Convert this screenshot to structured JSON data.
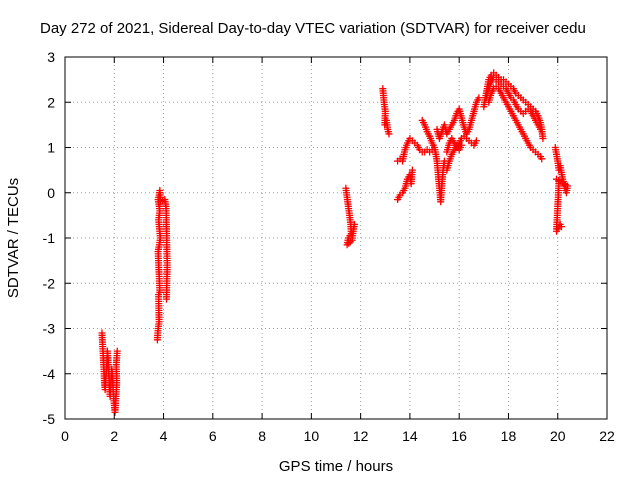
{
  "chart_data": {
    "type": "scatter",
    "title": "Day 272 of 2021, Sidereal Day-to-day VTEC variation (SDTVAR) for receiver cedu",
    "xlabel": "GPS time / hours",
    "ylabel": "SDTVAR / TECUs",
    "xlim": [
      0,
      22
    ],
    "ylim": [
      -5,
      3
    ],
    "xticks": [
      "0",
      "2",
      "4",
      "6",
      "8",
      "10",
      "12",
      "14",
      "16",
      "18",
      "20",
      "22"
    ],
    "yticks": [
      "-5",
      "-4",
      "-3",
      "-2",
      "-1",
      "0",
      "1",
      "2",
      "3"
    ],
    "grid": true,
    "marker": "plus",
    "series": [
      {
        "name": "SDTVAR",
        "color": "#ff0000",
        "segments": [
          [
            [
              1.5,
              -3.1
            ],
            [
              1.52,
              -3.3
            ],
            [
              1.55,
              -3.6
            ],
            [
              1.58,
              -3.9
            ],
            [
              1.6,
              -4.2
            ],
            [
              1.63,
              -4.35
            ],
            [
              1.66,
              -4.05
            ],
            [
              1.7,
              -3.8
            ],
            [
              1.72,
              -3.5
            ],
            [
              1.75,
              -3.7
            ],
            [
              1.78,
              -4.0
            ],
            [
              1.8,
              -4.3
            ],
            [
              1.83,
              -4.5
            ],
            [
              1.86,
              -4.2
            ],
            [
              1.9,
              -3.9
            ],
            [
              1.93,
              -4.1
            ],
            [
              1.96,
              -4.4
            ],
            [
              2.0,
              -4.7
            ],
            [
              2.03,
              -4.85
            ],
            [
              2.06,
              -4.6
            ],
            [
              2.1,
              -4.2
            ],
            [
              2.08,
              -3.8
            ],
            [
              2.12,
              -3.5
            ]
          ],
          [
            [
              3.75,
              -3.25
            ],
            [
              3.78,
              -3.0
            ],
            [
              3.82,
              -2.85
            ],
            [
              3.8,
              -2.25
            ],
            [
              3.85,
              -2.2
            ],
            [
              3.78,
              -1.3
            ],
            [
              3.83,
              -1.15
            ],
            [
              3.87,
              -1.0
            ],
            [
              3.8,
              -0.6
            ],
            [
              3.85,
              -0.4
            ],
            [
              3.78,
              -0.15
            ],
            [
              3.82,
              -0.05
            ],
            [
              3.85,
              0.05
            ],
            [
              3.88,
              -0.2
            ],
            [
              4.05,
              -0.15
            ],
            [
              4.1,
              -0.3
            ],
            [
              4.15,
              -1.6
            ],
            [
              4.12,
              -2.35
            ]
          ],
          [
            [
              11.4,
              0.1
            ],
            [
              11.45,
              -0.1
            ],
            [
              11.5,
              -0.3
            ],
            [
              11.55,
              -0.5
            ],
            [
              11.6,
              -0.7
            ],
            [
              11.62,
              -0.9
            ],
            [
              11.5,
              -1.0
            ],
            [
              11.45,
              -1.15
            ],
            [
              11.65,
              -1.05
            ],
            [
              11.7,
              -0.85
            ],
            [
              11.75,
              -0.7
            ]
          ],
          [
            [
              12.9,
              2.3
            ],
            [
              12.95,
              2.0
            ],
            [
              13.0,
              1.8
            ],
            [
              12.98,
              1.5
            ],
            [
              13.05,
              1.6
            ],
            [
              13.1,
              1.4
            ],
            [
              13.15,
              1.3
            ]
          ],
          [
            [
              13.5,
              0.7
            ],
            [
              13.6,
              0.75
            ],
            [
              13.7,
              0.7
            ],
            [
              13.8,
              0.95
            ],
            [
              13.9,
              1.1
            ],
            [
              14.0,
              1.2
            ],
            [
              14.1,
              1.15
            ],
            [
              14.2,
              1.1
            ],
            [
              14.3,
              1.05
            ],
            [
              14.4,
              0.95
            ],
            [
              14.5,
              0.9
            ],
            [
              14.6,
              0.9
            ],
            [
              14.7,
              0.95
            ],
            [
              14.8,
              0.9
            ],
            [
              14.9,
              0.95
            ]
          ],
          [
            [
              13.5,
              -0.15
            ],
            [
              13.6,
              -0.05
            ],
            [
              13.7,
              0.0
            ],
            [
              13.8,
              0.1
            ],
            [
              13.9,
              0.3
            ],
            [
              14.0,
              0.4
            ],
            [
              14.05,
              0.2
            ],
            [
              14.1,
              0.5
            ]
          ],
          [
            [
              14.5,
              1.6
            ],
            [
              14.6,
              1.5
            ],
            [
              14.7,
              1.35
            ],
            [
              14.8,
              1.25
            ],
            [
              14.9,
              1.1
            ],
            [
              15.0,
              1.0
            ],
            [
              15.1,
              0.7
            ],
            [
              15.15,
              0.4
            ],
            [
              15.2,
              0.1
            ],
            [
              15.25,
              -0.2
            ],
            [
              15.3,
              0.2
            ],
            [
              15.35,
              0.5
            ],
            [
              15.4,
              0.7
            ]
          ],
          [
            [
              15.1,
              1.4
            ],
            [
              15.2,
              1.2
            ],
            [
              15.3,
              1.35
            ],
            [
              15.4,
              1.5
            ],
            [
              15.5,
              1.3
            ],
            [
              15.6,
              1.4
            ],
            [
              15.7,
              1.5
            ],
            [
              15.8,
              1.6
            ],
            [
              15.9,
              1.75
            ],
            [
              16.0,
              1.85
            ],
            [
              16.1,
              1.65
            ],
            [
              16.2,
              1.45
            ],
            [
              16.3,
              1.3
            ],
            [
              16.4,
              1.4
            ],
            [
              16.5,
              1.6
            ],
            [
              16.6,
              1.8
            ],
            [
              16.7,
              2.0
            ],
            [
              16.8,
              2.1
            ]
          ],
          [
            [
              15.5,
              0.9
            ],
            [
              15.6,
              1.1
            ],
            [
              15.7,
              1.2
            ],
            [
              15.8,
              1.1
            ],
            [
              15.9,
              1.0
            ],
            [
              16.0,
              1.1
            ],
            [
              16.1,
              1.2
            ],
            [
              16.2,
              1.25
            ],
            [
              16.3,
              1.2
            ],
            [
              16.4,
              1.15
            ],
            [
              16.5,
              1.1
            ],
            [
              16.6,
              1.05
            ],
            [
              16.7,
              1.15
            ]
          ],
          [
            [
              15.5,
              0.5
            ],
            [
              15.6,
              0.7
            ],
            [
              15.7,
              0.85
            ],
            [
              15.8,
              0.95
            ],
            [
              15.9,
              1.05
            ],
            [
              16.0,
              0.95
            ],
            [
              16.1,
              1.05
            ]
          ],
          [
            [
              17.0,
              1.9
            ],
            [
              17.1,
              2.2
            ],
            [
              17.2,
              2.5
            ],
            [
              17.3,
              2.6
            ],
            [
              17.4,
              2.65
            ],
            [
              17.5,
              2.6
            ],
            [
              17.6,
              2.55
            ],
            [
              17.7,
              2.5
            ],
            [
              17.8,
              2.5
            ],
            [
              17.9,
              2.45
            ],
            [
              18.0,
              2.4
            ],
            [
              18.1,
              2.35
            ],
            [
              18.2,
              2.3
            ],
            [
              18.3,
              2.2
            ],
            [
              18.4,
              2.15
            ],
            [
              18.5,
              2.1
            ],
            [
              18.6,
              2.05
            ],
            [
              18.7,
              2.0
            ],
            [
              18.8,
              1.95
            ],
            [
              18.9,
              1.9
            ],
            [
              19.0,
              1.85
            ],
            [
              19.1,
              1.8
            ],
            [
              19.2,
              1.7
            ],
            [
              19.3,
              1.55
            ],
            [
              19.35,
              1.4
            ],
            [
              19.4,
              1.2
            ]
          ],
          [
            [
              17.2,
              2.0
            ],
            [
              17.3,
              2.2
            ],
            [
              17.4,
              2.3
            ],
            [
              17.5,
              2.35
            ],
            [
              17.6,
              2.3
            ],
            [
              17.7,
              2.2
            ],
            [
              17.8,
              2.1
            ],
            [
              17.9,
              2.0
            ],
            [
              18.0,
              1.9
            ],
            [
              18.1,
              1.8
            ],
            [
              18.2,
              1.7
            ],
            [
              18.3,
              1.6
            ],
            [
              18.4,
              1.5
            ],
            [
              18.5,
              1.4
            ],
            [
              18.6,
              1.3
            ],
            [
              18.7,
              1.2
            ],
            [
              18.8,
              1.1
            ],
            [
              18.9,
              1.0
            ],
            [
              19.0,
              0.95
            ],
            [
              19.1,
              0.9
            ],
            [
              19.2,
              0.85
            ],
            [
              19.3,
              0.8
            ],
            [
              19.35,
              0.75
            ]
          ],
          [
            [
              17.1,
              2.1
            ],
            [
              17.2,
              2.3
            ],
            [
              17.3,
              2.45
            ],
            [
              17.4,
              2.55
            ],
            [
              17.5,
              2.5
            ],
            [
              17.6,
              2.45
            ],
            [
              17.7,
              2.4
            ],
            [
              17.8,
              2.35
            ],
            [
              17.9,
              2.3
            ],
            [
              18.0,
              2.2
            ],
            [
              18.1,
              2.1
            ],
            [
              18.2,
              2.05
            ],
            [
              18.3,
              1.95
            ],
            [
              18.4,
              1.85
            ],
            [
              18.5,
              1.8
            ],
            [
              18.6,
              1.75
            ],
            [
              18.7,
              1.8
            ],
            [
              18.8,
              1.85
            ],
            [
              18.9,
              1.8
            ],
            [
              19.0,
              1.7
            ],
            [
              19.1,
              1.6
            ],
            [
              19.2,
              1.5
            ],
            [
              19.3,
              1.4
            ]
          ],
          [
            [
              19.9,
              1.0
            ],
            [
              19.95,
              0.85
            ],
            [
              20.0,
              0.7
            ],
            [
              20.05,
              0.5
            ],
            [
              20.1,
              0.6
            ],
            [
              20.15,
              0.45
            ],
            [
              20.2,
              0.3
            ],
            [
              20.25,
              0.2
            ],
            [
              20.3,
              0.1
            ],
            [
              20.35,
              0.0
            ],
            [
              20.4,
              0.15
            ],
            [
              19.95,
              0.3
            ],
            [
              20.05,
              0.25
            ],
            [
              19.95,
              -0.85
            ],
            [
              20.0,
              -0.8
            ],
            [
              20.05,
              -0.75
            ],
            [
              20.1,
              -0.7
            ],
            [
              20.15,
              -0.75
            ]
          ]
        ]
      }
    ]
  }
}
